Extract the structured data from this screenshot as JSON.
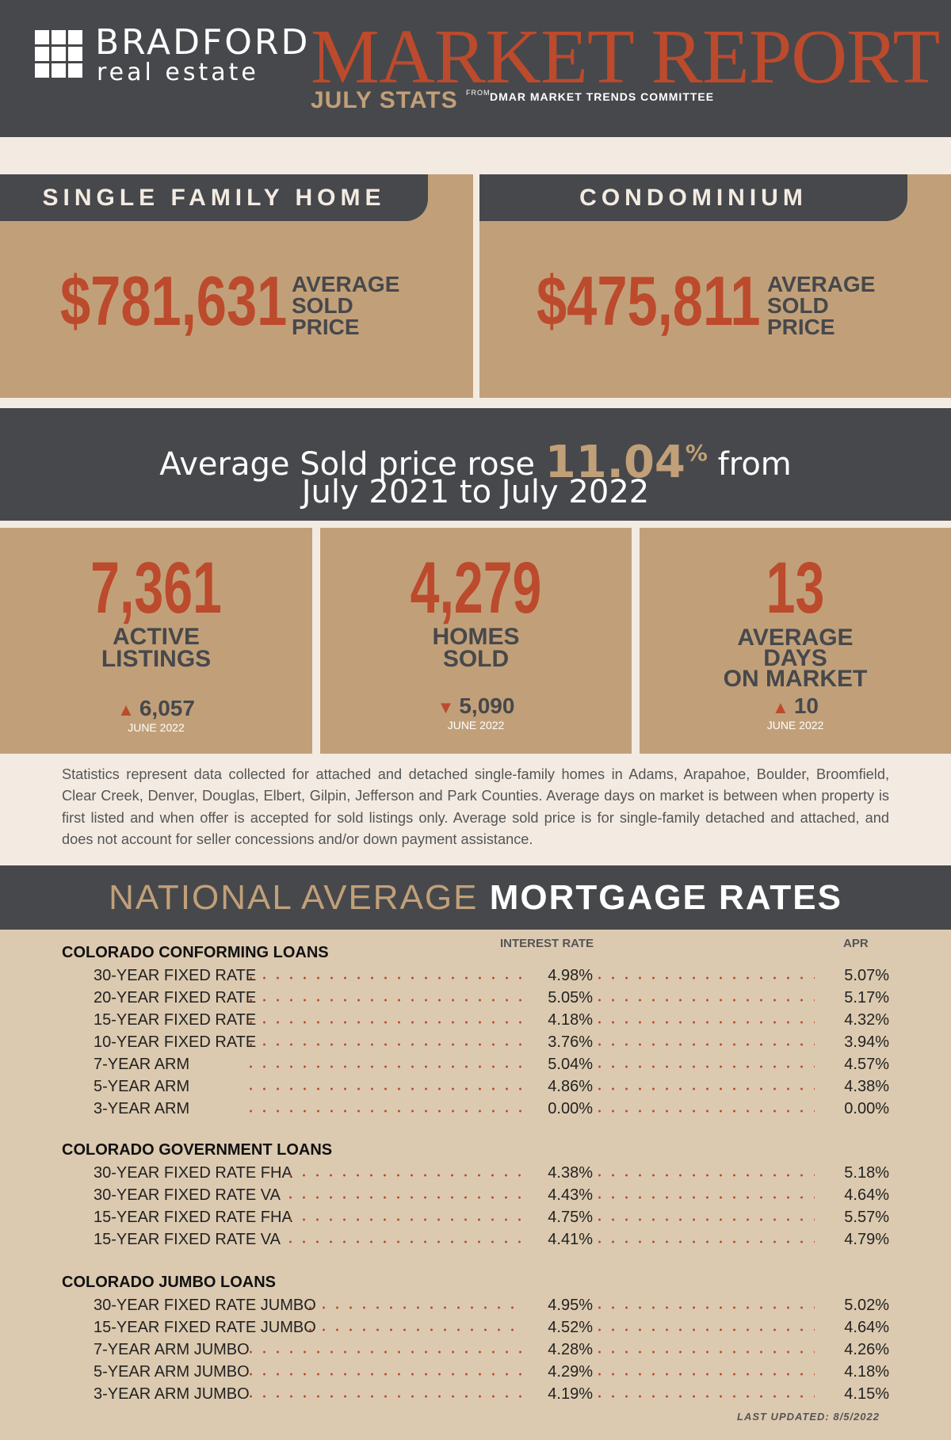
{
  "header": {
    "brand_name": "BRADFORD",
    "brand_sub": "real estate",
    "title": "MARKET REPORT",
    "month_label": "JULY STATS",
    "from_label": "FROM",
    "source": "DMAR MARKET TRENDS COMMITTEE",
    "colors": {
      "dark": "#47484b",
      "tan": "#c1a079",
      "rust": "#bc4a2c",
      "cream": "#f3ebe2"
    }
  },
  "price_cards": [
    {
      "tab": "SINGLE FAMILY HOME",
      "value": "$781,631",
      "label_lines": [
        "AVERAGE",
        "SOLD",
        "PRICE"
      ]
    },
    {
      "tab": "CONDOMINIUM",
      "value": "$475,811",
      "label_lines": [
        "AVERAGE",
        "SOLD",
        "PRICE"
      ]
    }
  ],
  "rise": {
    "prefix": "Average Sold price rose",
    "percent": "11.04",
    "percent_sign": "%",
    "suffix": "from",
    "line2": "July 2021 to July 2022"
  },
  "stats": [
    {
      "value": "7,361",
      "label_lines": [
        "ACTIVE",
        "LISTINGS"
      ],
      "direction_icon": "triangle-up-icon",
      "change": "6,057",
      "note": "JUNE 2022"
    },
    {
      "value": "4,279",
      "label_lines": [
        "HOMES",
        "SOLD"
      ],
      "direction_icon": "triangle-down-icon",
      "change": "5,090",
      "note": "JUNE 2022"
    },
    {
      "value": "13",
      "label_lines": [
        "AVERAGE",
        "DAYS",
        "ON MARKET"
      ],
      "direction_icon": "triangle-up-icon",
      "change": "10",
      "note": "JUNE 2022"
    }
  ],
  "disclaimer": "Statistics represent data collected for attached and detached single-family homes in Adams, Arapahoe, Boulder, Broomfield, Clear Creek, Denver, Douglas, Elbert, Gilpin, Jefferson and Park Counties. Average days on market is between when property is first listed and when offer is accepted for sold listings only. Average sold price is for single-family detached and attached, and does not account for seller concessions and/or down payment assistance.",
  "mortgage": {
    "title_light": "NATIONAL AVERAGE",
    "title_bold": "MORTGAGE RATES",
    "col_interest": "INTEREST RATE",
    "col_apr": "APR",
    "groups": [
      {
        "title": "COLORADO CONFORMING LOANS",
        "rows": [
          {
            "name": "30-YEAR FIXED RATE",
            "interest": "4.98%",
            "apr": "5.07%"
          },
          {
            "name": "20-YEAR FIXED RATE",
            "interest": "5.05%",
            "apr": "5.17%"
          },
          {
            "name": "15-YEAR FIXED RATE",
            "interest": "4.18%",
            "apr": "4.32%"
          },
          {
            "name": "10-YEAR FIXED RATE",
            "interest": "3.76%",
            "apr": "3.94%"
          },
          {
            "name": "7-YEAR ARM",
            "interest": "5.04%",
            "apr": "4.57%"
          },
          {
            "name": "5-YEAR ARM",
            "interest": "4.86%",
            "apr": "4.38%"
          },
          {
            "name": "3-YEAR ARM",
            "interest": "0.00%",
            "apr": "0.00%"
          }
        ]
      },
      {
        "title": "COLORADO GOVERNMENT LOANS",
        "rows": [
          {
            "name": "30-YEAR FIXED RATE FHA",
            "interest": "4.38%",
            "apr": "5.18%"
          },
          {
            "name": "30-YEAR FIXED RATE VA",
            "interest": "4.43%",
            "apr": "4.64%"
          },
          {
            "name": "15-YEAR FIXED RATE FHA",
            "interest": "4.75%",
            "apr": "5.57%"
          },
          {
            "name": "15-YEAR FIXED RATE VA",
            "interest": "4.41%",
            "apr": "4.79%"
          }
        ]
      },
      {
        "title": "COLORADO JUMBO LOANS",
        "rows": [
          {
            "name": "30-YEAR FIXED RATE JUMBO",
            "interest": "4.95%",
            "apr": "5.02%"
          },
          {
            "name": "15-YEAR FIXED RATE JUMBO",
            "interest": "4.52%",
            "apr": "4.64%"
          },
          {
            "name": "7-YEAR ARM JUMBO",
            "interest": "4.28%",
            "apr": "4.26%"
          },
          {
            "name": "5-YEAR ARM JUMBO",
            "interest": "4.29%",
            "apr": "4.18%"
          },
          {
            "name": "3-YEAR ARM JUMBO",
            "interest": "4.19%",
            "apr": "4.15%"
          }
        ]
      }
    ],
    "last_updated": "LAST UPDATED: 8/5/2022"
  }
}
